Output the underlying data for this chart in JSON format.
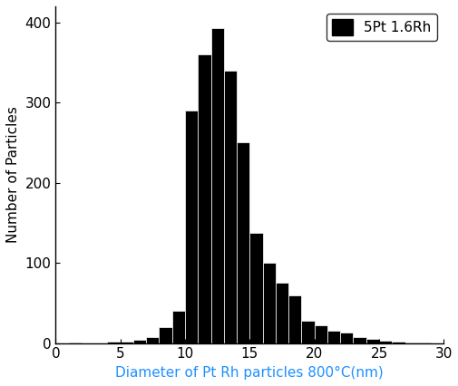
{
  "bin_edges": [
    0,
    1,
    2,
    3,
    4,
    5,
    6,
    7,
    8,
    9,
    10,
    11,
    12,
    13,
    14,
    15,
    16,
    17,
    18,
    19,
    20,
    21,
    22,
    23,
    24,
    25,
    26,
    27,
    28,
    29,
    30
  ],
  "counts": [
    0,
    1,
    0,
    0,
    2,
    2,
    4,
    8,
    20,
    40,
    290,
    360,
    393,
    340,
    250,
    137,
    100,
    75,
    60,
    28,
    22,
    15,
    13,
    8,
    5,
    3,
    2,
    1,
    1,
    0
  ],
  "bar_color": "#000000",
  "bar_edge_color": "#ffffff",
  "xlabel": "Diameter of Pt Rh particles 800°C(nm)",
  "ylabel": "Number of Particles",
  "xlabel_color": "#1E90FF",
  "ylabel_color": "#000000",
  "xlim": [
    0,
    30
  ],
  "ylim": [
    0,
    420
  ],
  "xticks": [
    0,
    5,
    10,
    15,
    20,
    25,
    30
  ],
  "yticks": [
    0,
    100,
    200,
    300,
    400
  ],
  "legend_label": "5Pt 1.6Rh",
  "legend_color": "#000000",
  "background_color": "#ffffff",
  "tick_color": "#000000",
  "spine_color": "#000000",
  "axis_fontsize": 11,
  "tick_fontsize": 11,
  "legend_fontsize": 11,
  "figwidth": 5.06,
  "figheight": 4.26,
  "dpi": 100
}
